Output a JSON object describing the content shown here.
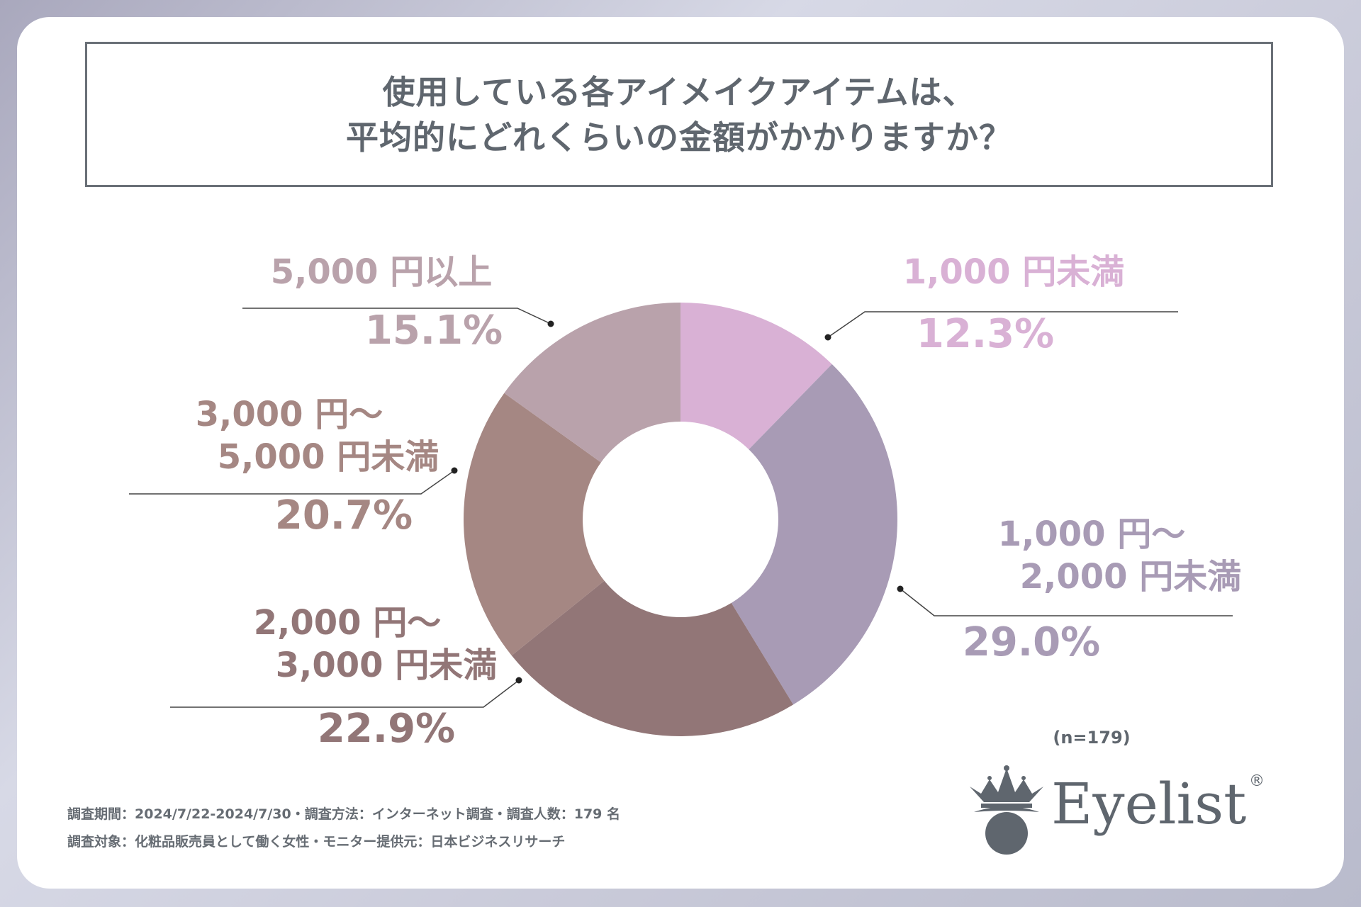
{
  "title": {
    "line1": "使用している各アイメイクアイテムは、",
    "line2": "平均的にどれくらいの金額がかかりますか？"
  },
  "chart_data": {
    "type": "pie",
    "donut": true,
    "slices": [
      {
        "label_lines": [
          "1,000 円未満"
        ],
        "value": 12.3,
        "pct": "12.3%",
        "color": "#d9b1d5"
      },
      {
        "label_lines": [
          "1,000 円～",
          "2,000 円未満"
        ],
        "value": 29.0,
        "pct": "29.0%",
        "color": "#a89bb5"
      },
      {
        "label_lines": [
          "2,000 円～",
          "3,000 円未満"
        ],
        "value": 22.9,
        "pct": "22.9%",
        "color": "#927677"
      },
      {
        "label_lines": [
          "3,000 円～",
          "5,000 円未満"
        ],
        "value": 20.7,
        "pct": "20.7%",
        "color": "#a58783"
      },
      {
        "label_lines": [
          "5,000 円以上"
        ],
        "value": 15.1,
        "pct": "15.1%",
        "color": "#b9a2ab"
      }
    ]
  },
  "sample_size": "(n=179)",
  "footer": {
    "line1": "調査期間：2024/7/22-2024/7/30・調査方法：インターネット調査・調査人数：179 名",
    "line2": "調査対象：化粧品販売員として働く女性・モニター提供元：日本ビジネスリサーチ"
  },
  "logo": {
    "text": "Eyelist",
    "mark": "®",
    "icon": "crown-eye-icon"
  }
}
